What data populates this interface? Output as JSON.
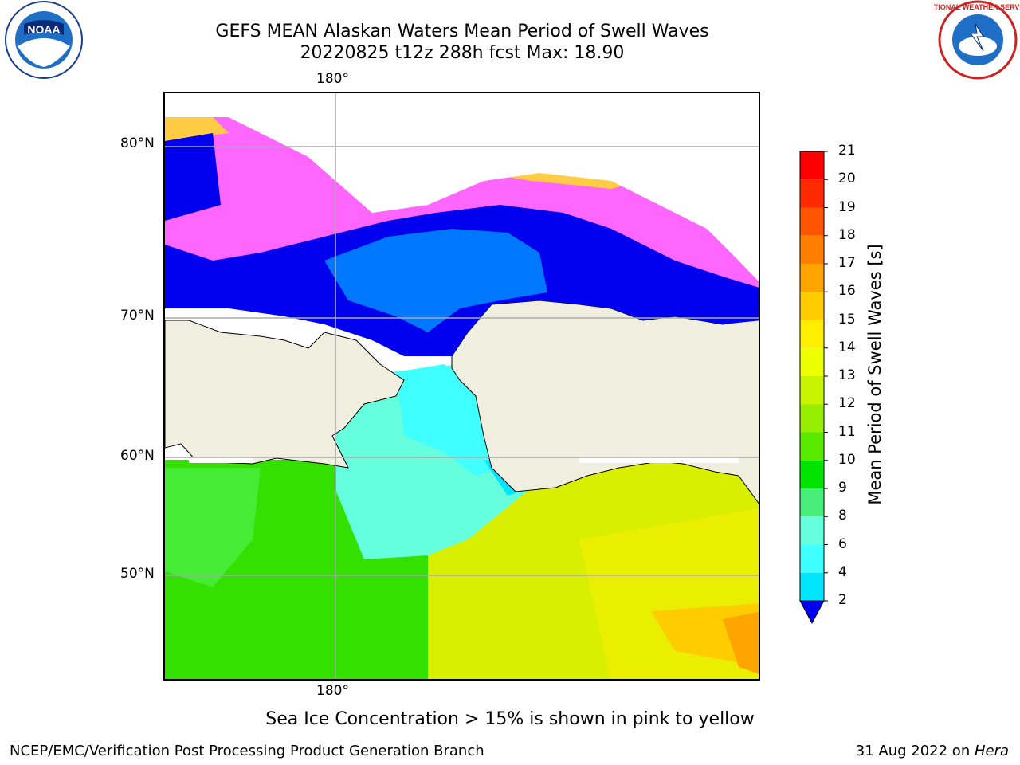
{
  "title": {
    "line1": "GEFS MEAN Alaskan Waters Mean Period of Swell Waves",
    "line2": "20220825 t12z 288h fcst   Max: 18.90"
  },
  "map": {
    "lon_label_top": "180°",
    "lon_label_bottom": "180°",
    "lat_labels": [
      "80°N",
      "70°N",
      "60°N",
      "50°N"
    ],
    "land_color": "#efeedf",
    "grid_color": "#aaaaaa"
  },
  "colorbar": {
    "title": "Mean Period of Swell Waves [s]",
    "ticks": [
      "21",
      "20",
      "19",
      "18",
      "17",
      "16",
      "15",
      "14",
      "13",
      "12",
      "11",
      "10",
      "9",
      "8",
      "6",
      "4",
      "2"
    ],
    "colors": [
      "#ff0000",
      "#ff2a00",
      "#ff5500",
      "#ff7f00",
      "#ffa500",
      "#ffcc00",
      "#ffee00",
      "#eeff00",
      "#c8f400",
      "#96ee00",
      "#5aea00",
      "#00e400",
      "#48ee7a",
      "#66ffdd",
      "#3fffff",
      "#00e6ff",
      "#0066ff"
    ],
    "extend_color": "#0000ee"
  },
  "note": "Sea Ice Concentration > 15% is shown in pink to yellow",
  "footer": {
    "left": "NCEP/EMC/Verification Post Processing Product Generation Branch",
    "right_prefix": "31 Aug 2022 on ",
    "right_italic": "Hera"
  },
  "logos": {
    "left_text": "NOAA",
    "right_text": "NATIONAL WEATHER SERVICE"
  }
}
